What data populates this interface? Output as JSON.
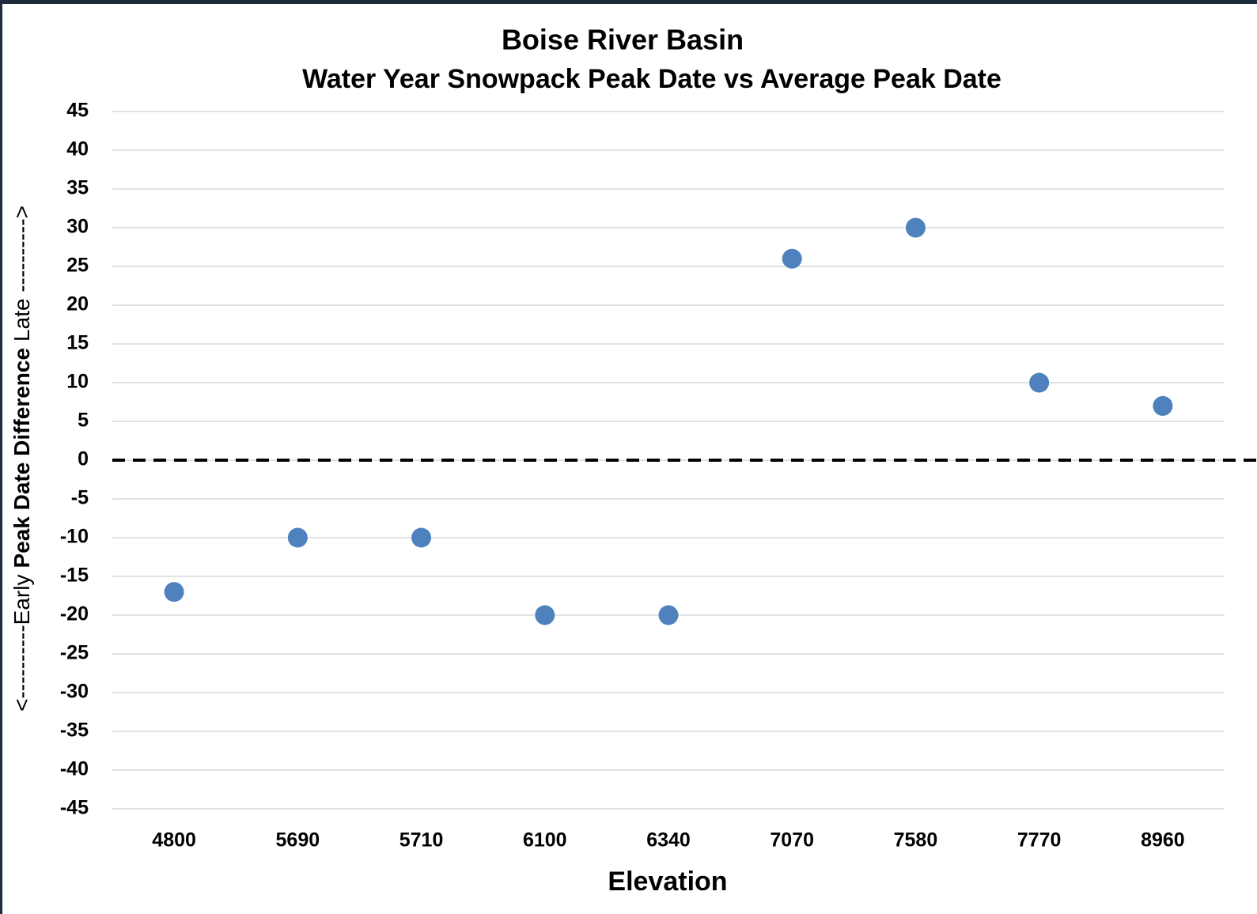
{
  "chart_data": {
    "type": "scatter",
    "title": "Boise River Basin",
    "subtitle": "Water Year Snowpack Peak Date vs Average Peak Date",
    "xlabel": "Elevation",
    "ylabel": {
      "early": "<----------Early",
      "main": "Peak Date Difference",
      "late": "Late ---------->"
    },
    "categories": [
      "4800",
      "5690",
      "5710",
      "6100",
      "6340",
      "7070",
      "7580",
      "7770",
      "8960"
    ],
    "values": [
      -17,
      -10,
      -10,
      -20,
      -20,
      26,
      30,
      10,
      7
    ],
    "color": "#4f81bd",
    "reference_line": 0,
    "ylim": [
      -45,
      45
    ],
    "yticks": [
      -45,
      -40,
      -35,
      -30,
      -25,
      -20,
      -15,
      -10,
      -5,
      0,
      5,
      10,
      15,
      20,
      25,
      30,
      35,
      40,
      45
    ],
    "grid": true
  }
}
